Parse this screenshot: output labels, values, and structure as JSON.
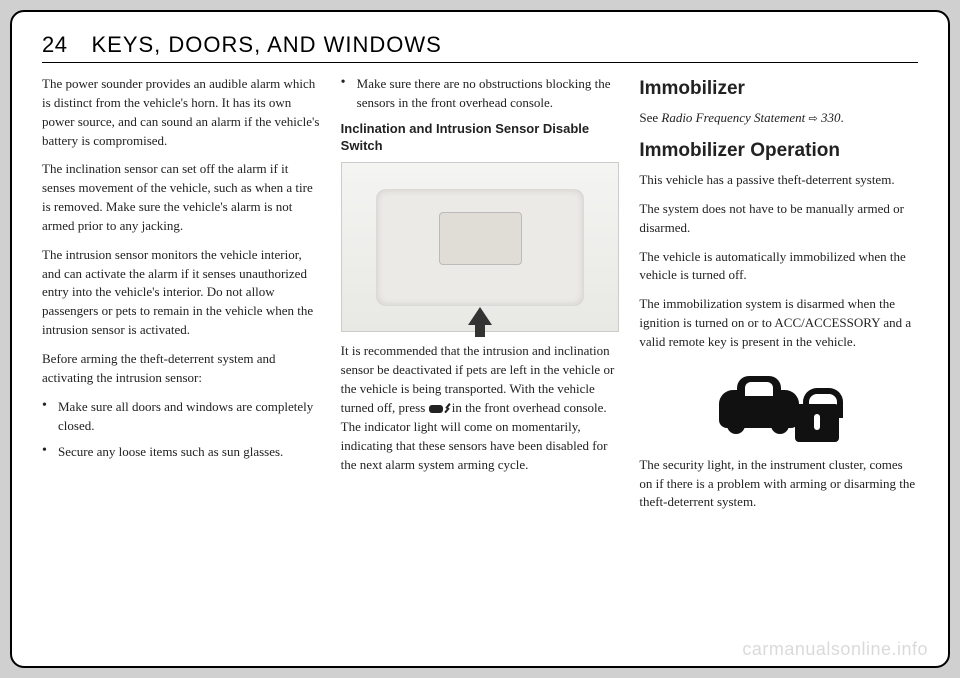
{
  "header": {
    "page_number": "24",
    "title": "KEYS, DOORS, AND WINDOWS"
  },
  "col1": {
    "p1": "The power sounder provides an audible alarm which is distinct from the vehicle's horn. It has its own power source, and can sound an alarm if the vehicle's battery is compromised.",
    "p2": "The inclination sensor can set off the alarm if it senses movement of the vehicle, such as when a tire is removed. Make sure the vehicle's alarm is not armed prior to any jacking.",
    "p3": "The intrusion sensor monitors the vehicle interior, and can activate the alarm if it senses unauthorized entry into the vehicle's interior. Do not allow passengers or pets to remain in the vehicle when the intrusion sensor is activated.",
    "p4": "Before arming the theft-deterrent system and activating the intrusion sensor:",
    "b1": "Make sure all doors and windows are completely closed.",
    "b2": "Secure any loose items such as sun glasses."
  },
  "col2": {
    "b3": "Make sure there are no obstructions blocking the sensors in the front overhead console.",
    "subhead": "Inclination and Intrusion Sensor Disable Switch",
    "p1a": "It is recommended that the intrusion and inclination sensor be deactivated if pets are left in the vehicle or the vehicle is being transported. With the vehicle turned off, press ",
    "p1b": " in the front overhead console. The indicator light will come on momentarily, indicating that these sensors have been disabled for the next alarm system arming cycle."
  },
  "col3": {
    "h_immobilizer": "Immobilizer",
    "see": "See ",
    "ref": "Radio Frequency Statement",
    "ref_page": " 330",
    "period": ".",
    "h_operation": "Immobilizer Operation",
    "p1": "This vehicle has a passive theft-deterrent system.",
    "p2": "The system does not have to be manually armed or disarmed.",
    "p3": "The vehicle is automatically immobilized when the vehicle is turned off.",
    "p4": "The immobilization system is disarmed when the ignition is turned on or to ACC/ACCESSORY and a valid remote key is present in the vehicle.",
    "p5": "The security light, in the instrument cluster, comes on if there is a problem with arming or disarming the theft-deterrent system."
  },
  "watermark": "carmanualsonline.info",
  "styling": {
    "page_bg": "#ffffff",
    "body_bg": "#d0d0d0",
    "border_color": "#000000",
    "text_color": "#222222",
    "body_font_size": 13,
    "header_font_size": 22,
    "h2_font_size": 19
  }
}
